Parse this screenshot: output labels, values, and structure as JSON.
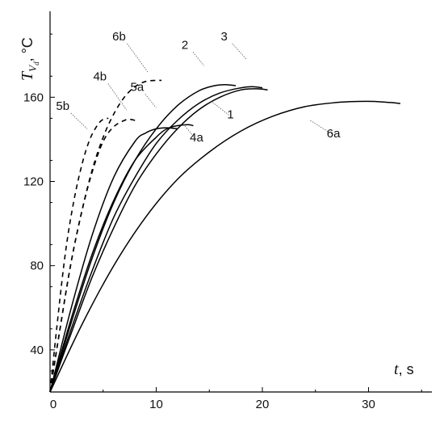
{
  "chart_data": {
    "type": "line",
    "title": "",
    "xlabel": {
      "symbol": "t",
      "unit": ", s"
    },
    "ylabel": {
      "symbol": "T",
      "subscript": "V",
      "subsub": "d",
      "unit": ", °C"
    },
    "xlim": [
      0,
      35
    ],
    "ylim": [
      20,
      200
    ],
    "x_ticks": [
      0,
      10,
      20,
      30
    ],
    "y_ticks": [
      40,
      80,
      120,
      160
    ],
    "grid": false,
    "series": [
      {
        "name": "1",
        "style": "solid",
        "x": [
          0,
          2,
          4,
          6,
          8,
          10,
          12,
          14,
          16,
          18,
          19.5,
          20.5
        ],
        "y": [
          20,
          48,
          75,
          98,
          118,
          133,
          145,
          154,
          160,
          163.5,
          164,
          163.5
        ]
      },
      {
        "name": "2",
        "style": "solid",
        "x": [
          0,
          2,
          4,
          6,
          8,
          10,
          12,
          14,
          15.5,
          16.5,
          17.5
        ],
        "y": [
          20,
          53,
          84,
          110,
          130,
          145,
          156,
          163,
          165.5,
          166,
          165.5
        ]
      },
      {
        "name": "3",
        "style": "solid",
        "x": [
          0,
          2,
          4,
          6,
          8,
          10,
          12,
          14,
          16,
          18,
          19,
          20
        ],
        "y": [
          20,
          50,
          78,
          103,
          122,
          138,
          149,
          157,
          162,
          164.5,
          165,
          164.5
        ]
      },
      {
        "name": "4a",
        "style": "solid",
        "x": [
          0,
          2,
          4,
          6,
          8,
          10,
          11,
          12,
          13,
          13.5
        ],
        "y": [
          20,
          55,
          86,
          111,
          130,
          141,
          145,
          146.5,
          147,
          146.5
        ]
      },
      {
        "name": "5a",
        "style": "solid",
        "x": [
          0,
          2,
          4,
          6,
          8,
          9,
          10,
          11,
          12
        ],
        "y": [
          20,
          60,
          95,
          122,
          139,
          143,
          145,
          145.5,
          145
        ]
      },
      {
        "name": "6a",
        "style": "solid",
        "x": [
          0,
          3,
          6,
          9,
          12,
          15,
          18,
          21,
          24,
          27,
          29,
          30.5,
          32,
          33
        ],
        "y": [
          20,
          52,
          80,
          103,
          121,
          134,
          144,
          151,
          155.5,
          157.5,
          158,
          158,
          157.5,
          157
        ]
      },
      {
        "name": "4b",
        "style": "dashed",
        "x": [
          0,
          1,
          2,
          3,
          4,
          5,
          6,
          7,
          7.5,
          8
        ],
        "y": [
          20,
          52,
          82,
          106,
          125,
          139,
          146,
          149,
          149.5,
          149
        ]
      },
      {
        "name": "5b",
        "style": "dashed",
        "x": [
          0,
          0.75,
          1.5,
          2.25,
          3,
          3.75,
          4.5,
          5,
          5.5
        ],
        "y": [
          20,
          56,
          88,
          111,
          128,
          140,
          147,
          149.5,
          150
        ]
      },
      {
        "name": "6b",
        "style": "dashed",
        "x": [
          0,
          1,
          2,
          3,
          4,
          5,
          6,
          7,
          8,
          9,
          10,
          10.5
        ],
        "y": [
          20,
          52,
          82,
          106,
          126,
          141,
          152,
          160,
          165,
          167.5,
          168,
          168
        ]
      }
    ],
    "labels": [
      {
        "text": "1",
        "x": 17,
        "y": 150,
        "leader_to": {
          "x": 15.2,
          "y": 158
        }
      },
      {
        "text": "2",
        "x": 12.7,
        "y": 183,
        "leader_to": {
          "x": 14.5,
          "y": 175
        }
      },
      {
        "text": "3",
        "x": 16.4,
        "y": 187,
        "leader_to": {
          "x": 18.5,
          "y": 178
        }
      },
      {
        "text": "4a",
        "x": 13.8,
        "y": 139,
        "leader_to": {
          "x": 12.6,
          "y": 147
        }
      },
      {
        "text": "5a",
        "x": 8.2,
        "y": 163,
        "leader_to": {
          "x": 10,
          "y": 155
        }
      },
      {
        "text": "6a",
        "x": 26.7,
        "y": 141,
        "leader_to": {
          "x": 24.5,
          "y": 149
        }
      },
      {
        "text": "4b",
        "x": 4.7,
        "y": 168,
        "leader_to": {
          "x": 7.2,
          "y": 154
        }
      },
      {
        "text": "5b",
        "x": 1.2,
        "y": 154,
        "leader_to": {
          "x": 3.5,
          "y": 145
        }
      },
      {
        "text": "6b",
        "x": 6.5,
        "y": 187,
        "leader_to": {
          "x": 9.2,
          "y": 172
        }
      }
    ]
  }
}
